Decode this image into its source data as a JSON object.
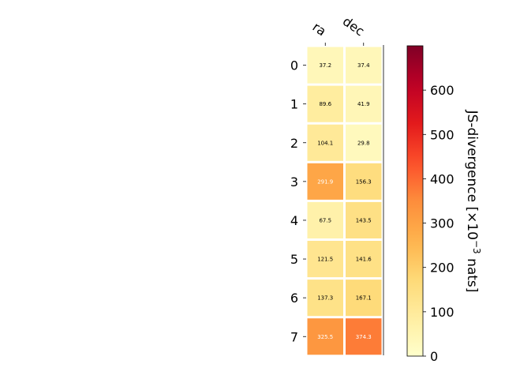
{
  "chart_data": {
    "type": "heatmap",
    "columns": [
      "ra",
      "dec"
    ],
    "rows": [
      "0",
      "1",
      "2",
      "3",
      "4",
      "5",
      "6",
      "7"
    ],
    "values": [
      [
        37.2,
        37.4
      ],
      [
        89.6,
        41.9
      ],
      [
        104.1,
        29.8
      ],
      [
        291.9,
        156.3
      ],
      [
        67.5,
        143.5
      ],
      [
        121.5,
        141.6
      ],
      [
        137.3,
        167.1
      ],
      [
        325.5,
        374.3
      ]
    ],
    "colorbar": {
      "label": "JS-divergence [×10",
      "label_exponent": "−3",
      "label_suffix": " nats]",
      "range": [
        0,
        700
      ],
      "ticks": [
        "0",
        "100",
        "200",
        "300",
        "400",
        "500",
        "600"
      ],
      "colormap": "YlOrRd"
    }
  }
}
